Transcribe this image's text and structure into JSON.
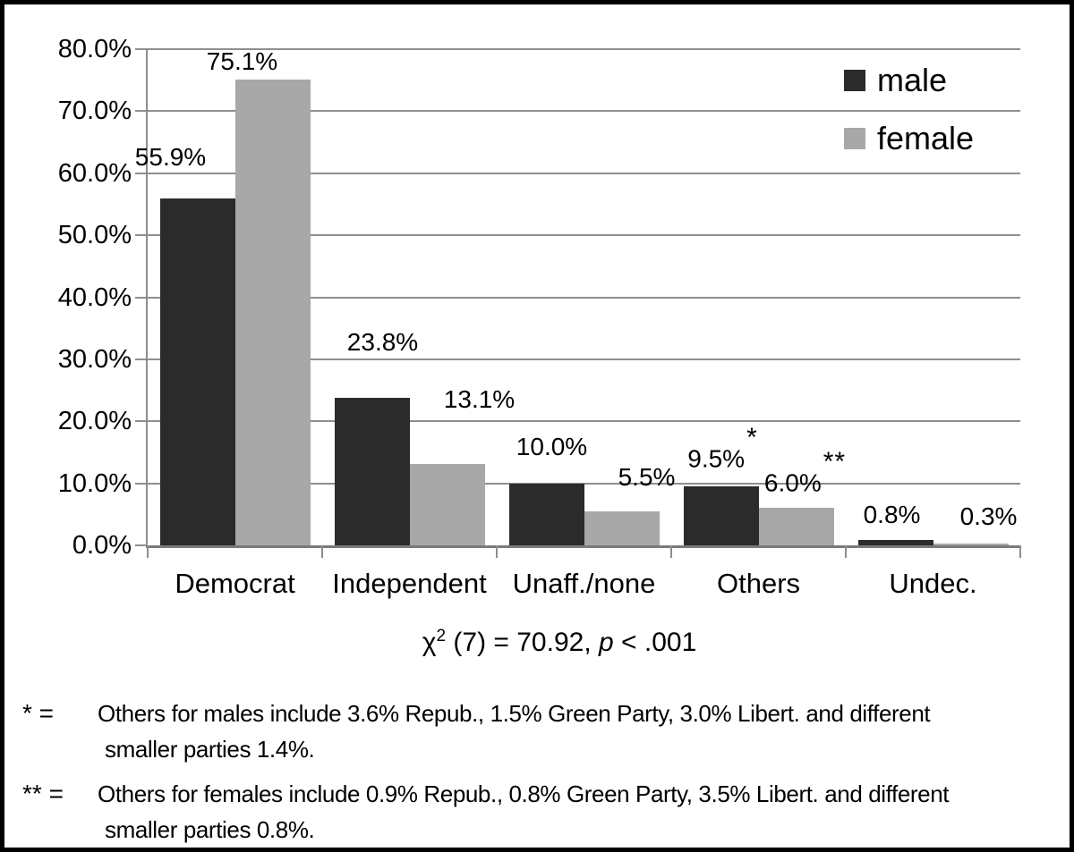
{
  "chart_data": {
    "type": "bar",
    "title": "",
    "categories": [
      "Democrat",
      "Independent",
      "Unaff./none",
      "Others",
      "Undec."
    ],
    "series": [
      {
        "name": "male",
        "color": "#2b2b2b",
        "values": [
          55.9,
          23.8,
          10.0,
          9.5,
          0.8
        ],
        "labels": [
          "55.9%",
          "23.8%",
          "10.0%",
          "9.5%",
          "0.8%"
        ],
        "notes": [
          "",
          "",
          "",
          "*",
          ""
        ]
      },
      {
        "name": "female",
        "color": "#a8a8a8",
        "values": [
          75.1,
          13.1,
          5.5,
          6.0,
          0.3
        ],
        "labels": [
          "75.1%",
          "13.1%",
          "5.5%",
          "6.0%",
          "0.3%"
        ],
        "notes": [
          "",
          "",
          "",
          "**",
          ""
        ]
      }
    ],
    "xlabel": "",
    "ylabel": "",
    "ylim": [
      0,
      80
    ],
    "ytick_step": 10,
    "ytick_labels": [
      "0.0%",
      "10.0%",
      "20.0%",
      "30.0%",
      "40.0%",
      "50.0%",
      "60.0%",
      "70.0%",
      "80.0%"
    ],
    "grid": "horizontal",
    "legend_position": "top-right",
    "annotation": "χ2 (7) = 70.92, p < .001",
    "footnotes": [
      "* = Others for males include 3.6% Repub., 1.5% Green Party, 3.0% Libert. and different smaller parties 1.4%.",
      "** = Others for females include 0.9% Repub., 0.8% Green Party, 3.5% Libert. and different smaller parties 0.8%."
    ]
  },
  "legend": {
    "items": [
      {
        "label": "male",
        "color": "#2b2b2b"
      },
      {
        "label": "female",
        "color": "#a8a8a8"
      }
    ]
  },
  "stats_line": {
    "chi_symbol": "χ",
    "exponent": "2",
    "middle": " (7) = 70.92, ",
    "p": "p",
    "tail": " < .001"
  },
  "footnotes": [
    {
      "marker": "* =",
      "lines": [
        "Others for males include 3.6% Repub., 1.5% Green Party, 3.0% Libert. and different",
        "smaller parties 1.4%."
      ]
    },
    {
      "marker": "** =",
      "lines": [
        "Others for females include 0.9% Repub., 0.8% Green Party, 3.5% Libert. and different",
        "smaller parties 0.8%."
      ]
    }
  ],
  "colors": {
    "male": "#2b2b2b",
    "female": "#a8a8a8",
    "gridline": "#8e8e8e",
    "axis": "#7a7a7a",
    "border": "#000000",
    "background": "#ffffff",
    "text": "#000000"
  }
}
